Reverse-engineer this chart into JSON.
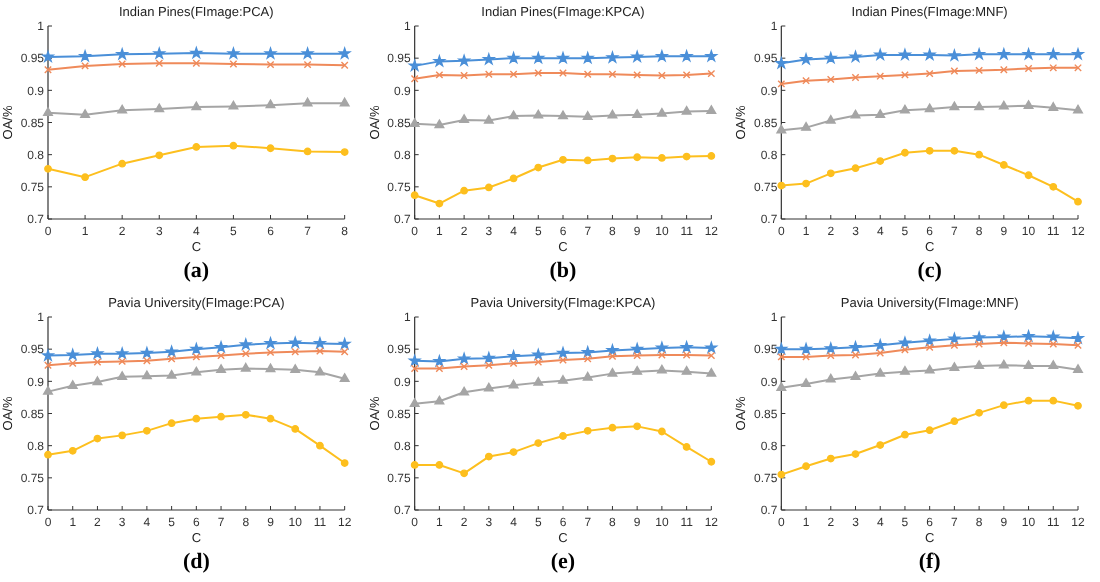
{
  "chart_data": [
    {
      "type": "line",
      "title": "Indian Pines(FImage:PCA)",
      "xlabel": "C",
      "ylabel": "OA/%",
      "annotations": [
        "(a)"
      ],
      "x": [
        0,
        1,
        2,
        3,
        4,
        5,
        6,
        7,
        8
      ],
      "xlim": [
        0,
        8
      ],
      "xticks": [
        0,
        1,
        2,
        3,
        4,
        5,
        6,
        7,
        8
      ],
      "ylim": [
        0.7,
        1
      ],
      "yticks": [
        0.7,
        0.75,
        0.8,
        0.85,
        0.9,
        0.95,
        1
      ],
      "series": [
        {
          "color": "#4a8fd8",
          "marker": "star",
          "values": [
            0.952,
            0.953,
            0.956,
            0.957,
            0.958,
            0.957,
            0.957,
            0.957,
            0.957
          ]
        },
        {
          "color": "#ef8a5a",
          "marker": "cross",
          "values": [
            0.932,
            0.938,
            0.941,
            0.942,
            0.942,
            0.941,
            0.94,
            0.94,
            0.939
          ]
        },
        {
          "color": "#a5a5a5",
          "marker": "triangle",
          "values": [
            0.865,
            0.862,
            0.869,
            0.871,
            0.874,
            0.875,
            0.877,
            0.88,
            0.88
          ]
        },
        {
          "color": "#fdbf1e",
          "marker": "circle",
          "values": [
            0.778,
            0.765,
            0.786,
            0.799,
            0.812,
            0.814,
            0.81,
            0.805,
            0.804
          ]
        }
      ]
    },
    {
      "type": "line",
      "title": "Indian Pines(FImage:KPCA)",
      "xlabel": "C",
      "ylabel": "OA/%",
      "annotations": [
        "(b)"
      ],
      "x": [
        0,
        1,
        2,
        3,
        4,
        5,
        6,
        7,
        8,
        9,
        10,
        11,
        12
      ],
      "xlim": [
        0,
        12
      ],
      "xticks": [
        0,
        1,
        2,
        3,
        4,
        5,
        6,
        7,
        8,
        9,
        10,
        11,
        12
      ],
      "ylim": [
        0.7,
        1
      ],
      "yticks": [
        0.7,
        0.75,
        0.8,
        0.85,
        0.9,
        0.95,
        1
      ],
      "series": [
        {
          "color": "#4a8fd8",
          "marker": "star",
          "values": [
            0.938,
            0.945,
            0.946,
            0.948,
            0.95,
            0.95,
            0.95,
            0.95,
            0.951,
            0.952,
            0.953,
            0.953,
            0.953
          ]
        },
        {
          "color": "#ef8a5a",
          "marker": "cross",
          "values": [
            0.918,
            0.924,
            0.923,
            0.925,
            0.925,
            0.927,
            0.927,
            0.925,
            0.925,
            0.924,
            0.923,
            0.924,
            0.926
          ]
        },
        {
          "color": "#a5a5a5",
          "marker": "triangle",
          "values": [
            0.848,
            0.846,
            0.854,
            0.853,
            0.86,
            0.861,
            0.86,
            0.859,
            0.861,
            0.862,
            0.864,
            0.867,
            0.868
          ]
        },
        {
          "color": "#fdbf1e",
          "marker": "circle",
          "values": [
            0.737,
            0.724,
            0.744,
            0.749,
            0.763,
            0.78,
            0.792,
            0.791,
            0.794,
            0.796,
            0.795,
            0.797,
            0.798
          ]
        }
      ]
    },
    {
      "type": "line",
      "title": "Indian Pines(FImage:MNF)",
      "xlabel": "C",
      "ylabel": "OA/%",
      "annotations": [
        "(c)"
      ],
      "x": [
        0,
        1,
        2,
        3,
        4,
        5,
        6,
        7,
        8,
        9,
        10,
        11,
        12
      ],
      "xlim": [
        0,
        12
      ],
      "xticks": [
        0,
        1,
        2,
        3,
        4,
        5,
        6,
        7,
        8,
        9,
        10,
        11,
        12
      ],
      "ylim": [
        0.7,
        1
      ],
      "yticks": [
        0.7,
        0.75,
        0.8,
        0.85,
        0.9,
        0.95,
        1
      ],
      "series": [
        {
          "color": "#4a8fd8",
          "marker": "star",
          "values": [
            0.942,
            0.948,
            0.95,
            0.952,
            0.955,
            0.955,
            0.955,
            0.954,
            0.956,
            0.956,
            0.956,
            0.956,
            0.956
          ]
        },
        {
          "color": "#ef8a5a",
          "marker": "cross",
          "values": [
            0.91,
            0.915,
            0.917,
            0.92,
            0.922,
            0.924,
            0.926,
            0.93,
            0.931,
            0.932,
            0.934,
            0.935,
            0.935
          ]
        },
        {
          "color": "#a5a5a5",
          "marker": "triangle",
          "values": [
            0.838,
            0.842,
            0.853,
            0.861,
            0.862,
            0.869,
            0.871,
            0.874,
            0.874,
            0.875,
            0.876,
            0.873,
            0.869
          ]
        },
        {
          "color": "#fdbf1e",
          "marker": "circle",
          "values": [
            0.752,
            0.755,
            0.771,
            0.779,
            0.79,
            0.803,
            0.806,
            0.806,
            0.8,
            0.784,
            0.768,
            0.75,
            0.727
          ]
        }
      ]
    },
    {
      "type": "line",
      "title": "Pavia University(FImage:PCA)",
      "xlabel": "C",
      "ylabel": "OA/%",
      "annotations": [
        "(d)"
      ],
      "x": [
        0,
        1,
        2,
        3,
        4,
        5,
        6,
        7,
        8,
        9,
        10,
        11,
        12
      ],
      "xlim": [
        0,
        12
      ],
      "xticks": [
        0,
        1,
        2,
        3,
        4,
        5,
        6,
        7,
        8,
        9,
        10,
        11,
        12
      ],
      "ylim": [
        0.7,
        1
      ],
      "yticks": [
        0.7,
        0.75,
        0.8,
        0.85,
        0.9,
        0.95,
        1
      ],
      "series": [
        {
          "color": "#4a8fd8",
          "marker": "star",
          "values": [
            0.94,
            0.941,
            0.943,
            0.943,
            0.944,
            0.946,
            0.95,
            0.953,
            0.957,
            0.959,
            0.96,
            0.959,
            0.958
          ]
        },
        {
          "color": "#ef8a5a",
          "marker": "cross",
          "values": [
            0.925,
            0.928,
            0.93,
            0.931,
            0.932,
            0.935,
            0.938,
            0.94,
            0.943,
            0.945,
            0.946,
            0.947,
            0.946
          ]
        },
        {
          "color": "#a5a5a5",
          "marker": "triangle",
          "values": [
            0.884,
            0.893,
            0.899,
            0.907,
            0.908,
            0.909,
            0.914,
            0.918,
            0.92,
            0.919,
            0.918,
            0.914,
            0.904
          ]
        },
        {
          "color": "#fdbf1e",
          "marker": "circle",
          "values": [
            0.786,
            0.792,
            0.811,
            0.816,
            0.823,
            0.835,
            0.842,
            0.845,
            0.848,
            0.842,
            0.826,
            0.8,
            0.773
          ]
        }
      ]
    },
    {
      "type": "line",
      "title": "Pavia University(FImage:KPCA)",
      "xlabel": "C",
      "ylabel": "OA/%",
      "annotations": [
        "(e)"
      ],
      "x": [
        0,
        1,
        2,
        3,
        4,
        5,
        6,
        7,
        8,
        9,
        10,
        11,
        12
      ],
      "xlim": [
        0,
        12
      ],
      "xticks": [
        0,
        1,
        2,
        3,
        4,
        5,
        6,
        7,
        8,
        9,
        10,
        11,
        12
      ],
      "ylim": [
        0.7,
        1
      ],
      "yticks": [
        0.7,
        0.75,
        0.8,
        0.85,
        0.9,
        0.95,
        1
      ],
      "series": [
        {
          "color": "#4a8fd8",
          "marker": "star",
          "values": [
            0.932,
            0.931,
            0.935,
            0.936,
            0.939,
            0.941,
            0.944,
            0.945,
            0.948,
            0.95,
            0.952,
            0.953,
            0.952
          ]
        },
        {
          "color": "#ef8a5a",
          "marker": "cross",
          "values": [
            0.92,
            0.92,
            0.923,
            0.925,
            0.928,
            0.93,
            0.933,
            0.935,
            0.939,
            0.94,
            0.941,
            0.941,
            0.94
          ]
        },
        {
          "color": "#a5a5a5",
          "marker": "triangle",
          "values": [
            0.865,
            0.869,
            0.883,
            0.889,
            0.894,
            0.898,
            0.901,
            0.906,
            0.912,
            0.915,
            0.917,
            0.915,
            0.912
          ]
        },
        {
          "color": "#fdbf1e",
          "marker": "circle",
          "values": [
            0.77,
            0.77,
            0.757,
            0.783,
            0.79,
            0.804,
            0.815,
            0.823,
            0.828,
            0.83,
            0.822,
            0.798,
            0.775
          ]
        }
      ]
    },
    {
      "type": "line",
      "title": "Pavia University(FImage:MNF)",
      "xlabel": "C",
      "ylabel": "OA/%",
      "annotations": [
        "(f)"
      ],
      "x": [
        0,
        1,
        2,
        3,
        4,
        5,
        6,
        7,
        8,
        9,
        10,
        11,
        12
      ],
      "xlim": [
        0,
        12
      ],
      "xticks": [
        0,
        1,
        2,
        3,
        4,
        5,
        6,
        7,
        8,
        9,
        10,
        11,
        12
      ],
      "ylim": [
        0.7,
        1
      ],
      "yticks": [
        0.7,
        0.75,
        0.8,
        0.85,
        0.9,
        0.95,
        1
      ],
      "series": [
        {
          "color": "#4a8fd8",
          "marker": "star",
          "values": [
            0.95,
            0.95,
            0.951,
            0.953,
            0.956,
            0.96,
            0.963,
            0.966,
            0.968,
            0.969,
            0.97,
            0.969,
            0.967
          ]
        },
        {
          "color": "#ef8a5a",
          "marker": "cross",
          "values": [
            0.938,
            0.938,
            0.94,
            0.941,
            0.944,
            0.949,
            0.953,
            0.956,
            0.958,
            0.96,
            0.959,
            0.958,
            0.956
          ]
        },
        {
          "color": "#a5a5a5",
          "marker": "triangle",
          "values": [
            0.89,
            0.896,
            0.903,
            0.907,
            0.912,
            0.915,
            0.917,
            0.921,
            0.924,
            0.925,
            0.924,
            0.924,
            0.918
          ]
        },
        {
          "color": "#fdbf1e",
          "marker": "circle",
          "values": [
            0.755,
            0.768,
            0.78,
            0.787,
            0.801,
            0.817,
            0.824,
            0.838,
            0.851,
            0.863,
            0.87,
            0.87,
            0.862
          ]
        }
      ]
    }
  ]
}
